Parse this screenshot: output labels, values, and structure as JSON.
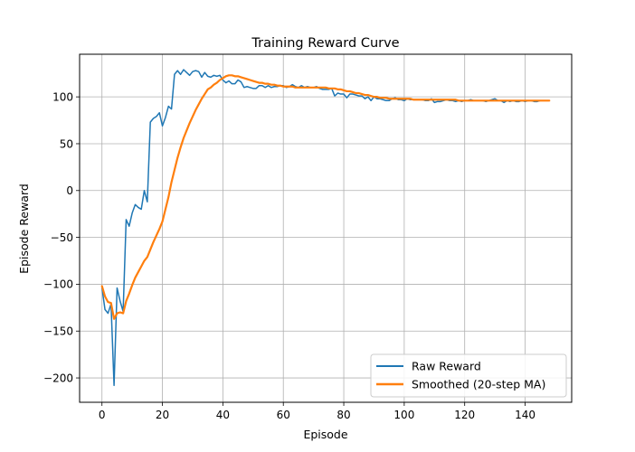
{
  "chart_data": {
    "type": "line",
    "title": "Training Reward Curve",
    "xlabel": "Episode",
    "ylabel": "Episode Reward",
    "xlim": [
      -7.4,
      155.4
    ],
    "ylim": [
      -226,
      145.5
    ],
    "xticks": [
      0,
      20,
      40,
      60,
      80,
      100,
      120,
      140
    ],
    "yticks": [
      -200,
      -150,
      -100,
      -50,
      0,
      50,
      100
    ],
    "ytick_labels": [
      "−200",
      "−150",
      "−100",
      "−50",
      "0",
      "50",
      "100"
    ],
    "grid": true,
    "legend_position": "lower-right",
    "series": [
      {
        "name": "Raw Reward",
        "color": "#1f77b4",
        "x": [
          0,
          1,
          2,
          3,
          4,
          5,
          6,
          7,
          8,
          9,
          10,
          11,
          12,
          13,
          14,
          15,
          16,
          17,
          18,
          19,
          20,
          21,
          22,
          23,
          24,
          25,
          26,
          27,
          28,
          29,
          30,
          31,
          32,
          33,
          34,
          35,
          36,
          37,
          38,
          39,
          40,
          41,
          42,
          43,
          44,
          45,
          46,
          47,
          48,
          49,
          50,
          51,
          52,
          53,
          54,
          55,
          56,
          57,
          58,
          59,
          60,
          61,
          62,
          63,
          64,
          65,
          66,
          67,
          68,
          69,
          70,
          71,
          72,
          73,
          74,
          75,
          76,
          77,
          78,
          79,
          80,
          81,
          82,
          83,
          84,
          85,
          86,
          87,
          88,
          89,
          90,
          91,
          92,
          93,
          94,
          95,
          96,
          97,
          98,
          99,
          100,
          101,
          102,
          103,
          104,
          105,
          106,
          107,
          108,
          109,
          110,
          111,
          112,
          113,
          114,
          115,
          116,
          117,
          118,
          119,
          120,
          121,
          122,
          123,
          124,
          125,
          126,
          127,
          128,
          129,
          130,
          131,
          132,
          133,
          134,
          135,
          136,
          137,
          138,
          139,
          140,
          141,
          142,
          143,
          144,
          145,
          146,
          147,
          148
        ],
        "values": [
          -104,
          -127,
          -131,
          -121,
          -208,
          -104,
          -118,
          -129,
          -31,
          -38,
          -24,
          -15,
          -18,
          -20,
          0,
          -12,
          73,
          77,
          79,
          83,
          69,
          78,
          90,
          87,
          124,
          128,
          124,
          129,
          126,
          123,
          127,
          128,
          127,
          121,
          126,
          122,
          121,
          123,
          122,
          123,
          118,
          115,
          117,
          114,
          114,
          118,
          116,
          110,
          111,
          110,
          109,
          109,
          112,
          112,
          110,
          112,
          110,
          111,
          111,
          112,
          112,
          110,
          111,
          113,
          111,
          110,
          112,
          110,
          111,
          110,
          110,
          111,
          109,
          108,
          108,
          108,
          109,
          101,
          104,
          103,
          103,
          99,
          103,
          103,
          102,
          101,
          101,
          98,
          100,
          96,
          100,
          98,
          98,
          97,
          96,
          96,
          98,
          99,
          97,
          97,
          96,
          98,
          97,
          97,
          97,
          97,
          97,
          96,
          96,
          98,
          94,
          95,
          95,
          96,
          97,
          96,
          96,
          95,
          96,
          95,
          96,
          96,
          97,
          96,
          96,
          96,
          96,
          95,
          96,
          97,
          98,
          96,
          96,
          94,
          96,
          95,
          96,
          95,
          95,
          96,
          95,
          96,
          96,
          95,
          95,
          96,
          96,
          96,
          96
        ]
      },
      {
        "name": "Smoothed (20-step MA)",
        "color": "#ff7f0e",
        "x": [
          0,
          1,
          2,
          3,
          4,
          5,
          6,
          7,
          8,
          9,
          10,
          11,
          12,
          13,
          14,
          15,
          16,
          17,
          18,
          19,
          20,
          21,
          22,
          23,
          24,
          25,
          26,
          27,
          28,
          29,
          30,
          31,
          32,
          33,
          34,
          35,
          36,
          37,
          38,
          39,
          40,
          41,
          42,
          43,
          44,
          45,
          46,
          47,
          48,
          49,
          50,
          51,
          52,
          53,
          54,
          55,
          56,
          57,
          58,
          59,
          60,
          61,
          62,
          63,
          64,
          65,
          66,
          67,
          68,
          69,
          70,
          71,
          72,
          73,
          74,
          75,
          76,
          77,
          78,
          79,
          80,
          81,
          82,
          83,
          84,
          85,
          86,
          87,
          88,
          89,
          90,
          91,
          92,
          93,
          94,
          95,
          96,
          97,
          98,
          99,
          100,
          101,
          102,
          103,
          104,
          105,
          106,
          107,
          108,
          109,
          110,
          111,
          112,
          113,
          114,
          115,
          116,
          117,
          118,
          119,
          120,
          121,
          122,
          123,
          124,
          125,
          126,
          127,
          128,
          129,
          130,
          131,
          132,
          133,
          134,
          135,
          136,
          137,
          138,
          139,
          140,
          141,
          142,
          143,
          144,
          145,
          146,
          147,
          148
        ],
        "values": [
          -102,
          -113,
          -119,
          -120,
          -137,
          -131,
          -130,
          -131,
          -118,
          -110,
          -101,
          -93,
          -87,
          -81,
          -75,
          -71,
          -63,
          -55,
          -48,
          -41,
          -33,
          -20,
          -7,
          9,
          22,
          35,
          46,
          56,
          64,
          72,
          79,
          86,
          92,
          98,
          103,
          108,
          110,
          113,
          115,
          118,
          120,
          122,
          123,
          123,
          122,
          122,
          121,
          120,
          119,
          118,
          117,
          116,
          115,
          115,
          114,
          114,
          113,
          113,
          112,
          112,
          111,
          111,
          111,
          111,
          110,
          110,
          110,
          110,
          110,
          110,
          110,
          110,
          110,
          110,
          110,
          109,
          109,
          109,
          108,
          108,
          107,
          106,
          106,
          105,
          104,
          104,
          103,
          102,
          102,
          101,
          100,
          100,
          99,
          99,
          99,
          98,
          98,
          98,
          98,
          98,
          98,
          98,
          98,
          97,
          97,
          97,
          97,
          97,
          97,
          97,
          97,
          97,
          97,
          97,
          97,
          97,
          97,
          97,
          96,
          96,
          96,
          96,
          96,
          96,
          96,
          96,
          96,
          96,
          96,
          96,
          96,
          96,
          96,
          96,
          96,
          96,
          96,
          96,
          96,
          96,
          96,
          96,
          96,
          96,
          96,
          96,
          96,
          96,
          96
        ]
      }
    ]
  }
}
